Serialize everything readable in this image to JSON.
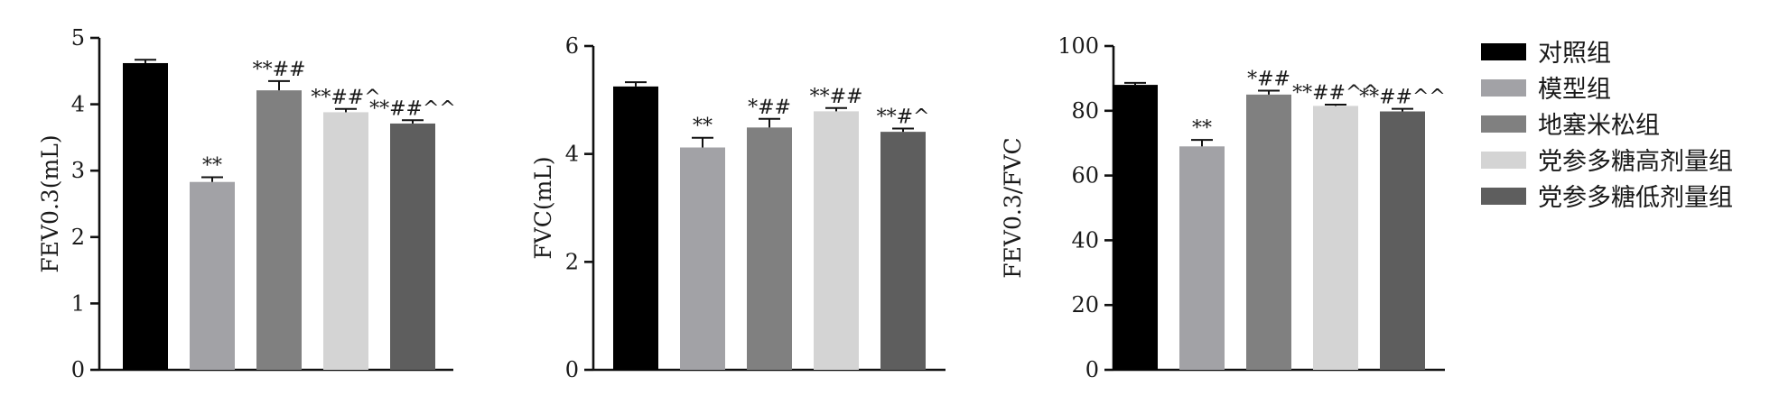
{
  "chart_data": [
    {
      "type": "bar",
      "ylabel": "FEV0.3(mL)",
      "ylim": [
        0,
        5
      ],
      "yticks": [
        "0",
        "1",
        "2",
        "3",
        "4",
        "5"
      ],
      "categories": [
        "对照组",
        "模型组",
        "地塞米松组",
        "党参多糖高剂量组",
        "党参多糖低剂量组"
      ],
      "values": [
        4.62,
        2.83,
        4.21,
        3.88,
        3.71
      ],
      "errors": [
        0.05,
        0.07,
        0.14,
        0.05,
        0.05
      ],
      "annotations": [
        "",
        "**",
        "**##",
        "**##^",
        "**##^^"
      ]
    },
    {
      "type": "bar",
      "ylabel": "FVC(mL)",
      "ylim": [
        0,
        6
      ],
      "yticks": [
        "0",
        "2",
        "4",
        "6"
      ],
      "categories": [
        "对照组",
        "模型组",
        "地塞米松组",
        "党参多糖高剂量组",
        "党参多糖低剂量组"
      ],
      "values": [
        5.25,
        4.12,
        4.49,
        4.79,
        4.41
      ],
      "errors": [
        0.08,
        0.18,
        0.16,
        0.06,
        0.06
      ],
      "annotations": [
        "",
        "**",
        "*##",
        "**##",
        "**#^"
      ]
    },
    {
      "type": "bar",
      "ylabel": "FEV0.3/FVC",
      "ylim": [
        0,
        100
      ],
      "yticks": [
        "0",
        "20",
        "40",
        "60",
        "80",
        "100"
      ],
      "categories": [
        "对照组",
        "模型组",
        "地塞米松组",
        "党参多糖高剂量组",
        "党参多糖低剂量组"
      ],
      "values": [
        88,
        69,
        85,
        81.5,
        79.8
      ],
      "errors": [
        0.6,
        2.0,
        1.2,
        0.4,
        0.8
      ],
      "annotations": [
        "",
        "**",
        "*##",
        "**##^^",
        "**##^^"
      ]
    }
  ],
  "legend": {
    "placement": "right",
    "items": [
      {
        "label": "对照组",
        "color": "#000000"
      },
      {
        "label": "模型组",
        "color": "#a2a2a6"
      },
      {
        "label": "地塞米松组",
        "color": "#808080"
      },
      {
        "label": "党参多糖高剂量组",
        "color": "#d4d4d4"
      },
      {
        "label": "党参多糖低剂量组",
        "color": "#5e5e5e"
      }
    ]
  }
}
